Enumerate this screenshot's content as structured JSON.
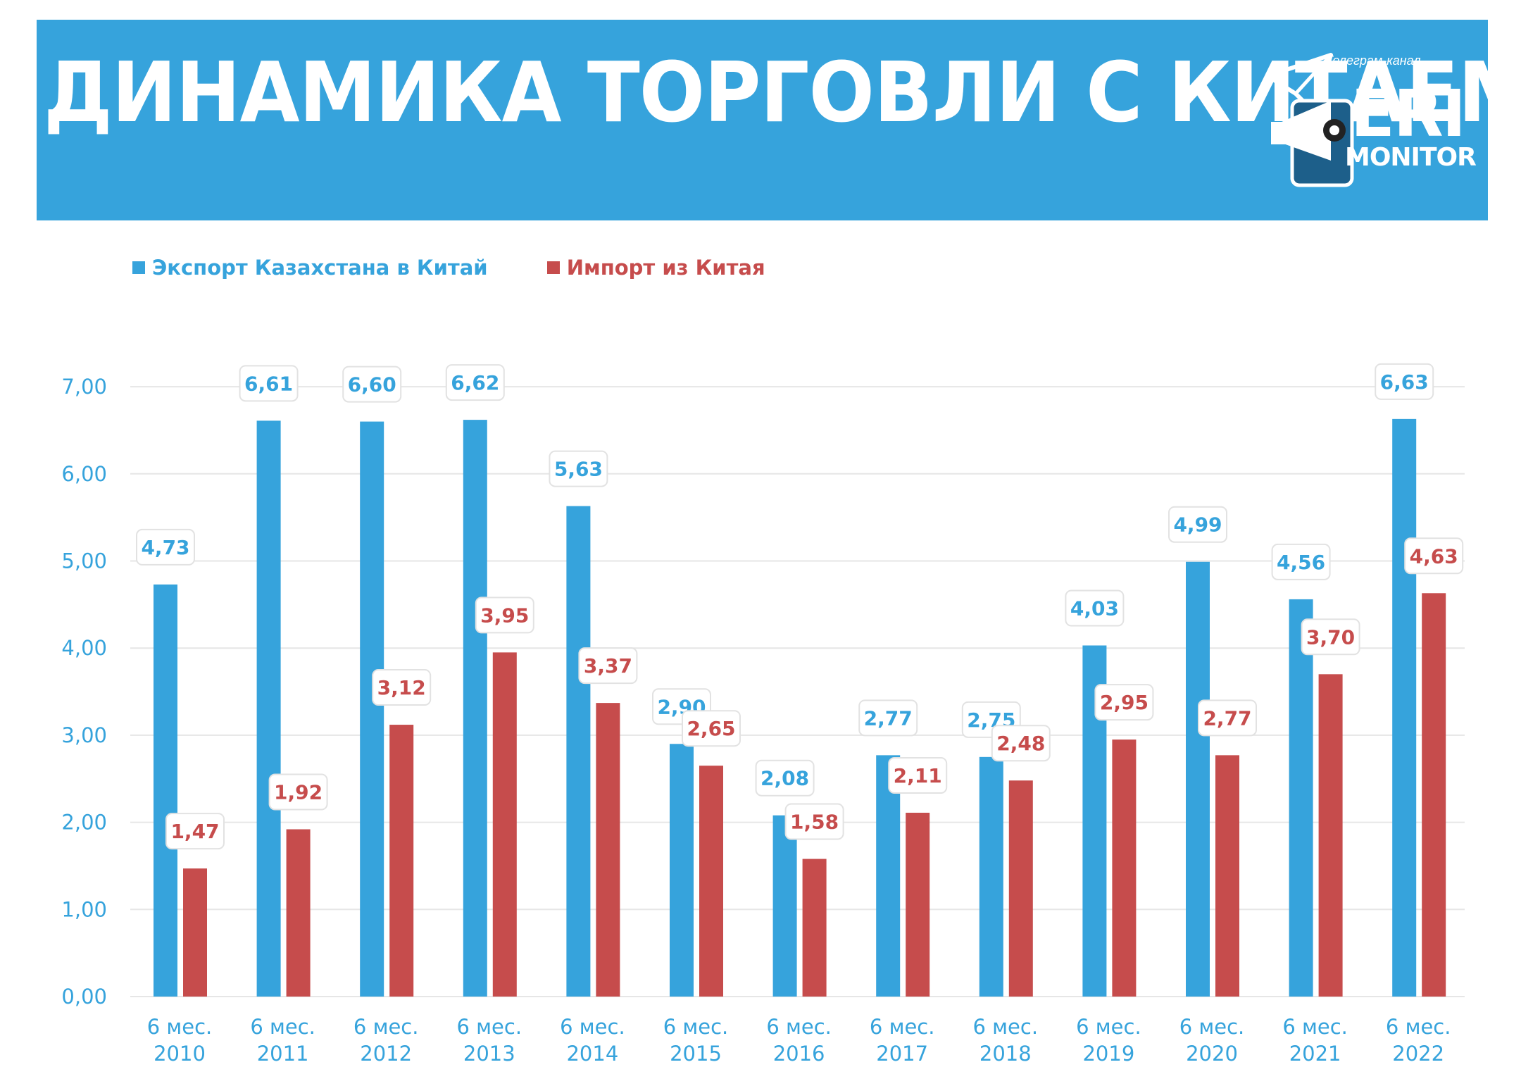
{
  "header": {
    "title": "ДИНАМИКА ТОРГОВЛИ С КИТАЕМ",
    "logo_caption": "Телеграм-канал",
    "logo_name": "ERI",
    "logo_subname": "MONITOR"
  },
  "colors": {
    "banner": "#36a3dc",
    "export": "#36a3dc",
    "import": "#c64c4c",
    "grid": "#e6e6e6"
  },
  "chart_data": {
    "type": "bar",
    "categories": [
      "6 мес. 2010",
      "6 мес. 2011",
      "6 мес. 2012",
      "6 мес. 2013",
      "6 мес. 2014",
      "6 мес. 2015",
      "6 мес. 2016",
      "6 мес. 2017",
      "6 мес. 2018",
      "6 мес. 2019",
      "6 мес. 2020",
      "6 мес. 2021",
      "6 мес. 2022"
    ],
    "series": [
      {
        "name": "Экспорт Казахстана в Китай",
        "values": [
          4.73,
          6.61,
          6.6,
          6.62,
          5.63,
          2.9,
          2.08,
          2.77,
          2.75,
          4.03,
          4.99,
          4.56,
          6.63
        ]
      },
      {
        "name": "Импорт из Китая",
        "values": [
          1.47,
          1.92,
          3.12,
          3.95,
          3.37,
          2.65,
          1.58,
          2.11,
          2.48,
          2.95,
          2.77,
          3.7,
          4.63
        ]
      }
    ],
    "data_labels": [
      [
        "4,73",
        "6,61",
        "6,60",
        "6,62",
        "5,63",
        "2,90",
        "2,08",
        "2,77",
        "2,75",
        "4,03",
        "4,99",
        "4,56",
        "6,63"
      ],
      [
        "1,47",
        "1,92",
        "3,12",
        "3,95",
        "3,37",
        "2,65",
        "1,58",
        "2,11",
        "2,48",
        "2,95",
        "2,77",
        "3,70",
        "4,63"
      ]
    ],
    "yticks": [
      0,
      1,
      2,
      3,
      4,
      5,
      6,
      7
    ],
    "ytick_labels": [
      "0,00",
      "1,00",
      "2,00",
      "3,00",
      "4,00",
      "5,00",
      "6,00",
      "7,00"
    ],
    "ylim": [
      0,
      7
    ],
    "grid": true,
    "legend_position": "top-left"
  }
}
